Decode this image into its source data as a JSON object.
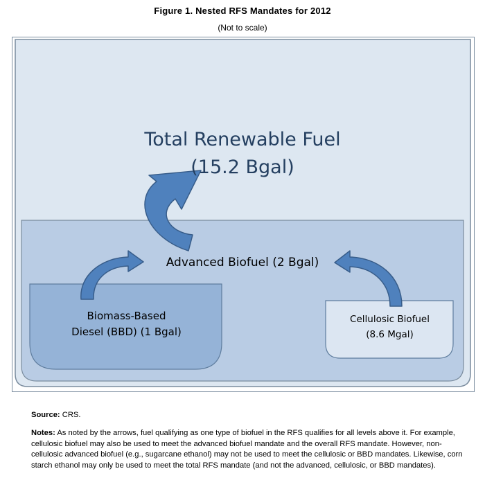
{
  "figure": {
    "title": "Figure 1. Nested RFS Mandates for 2012",
    "subtitle": "(Not to scale)"
  },
  "diagram": {
    "total_renewable_fuel": {
      "name": "Total Renewable Fuel",
      "amount": "(15.2 Bgal)"
    },
    "advanced_biofuel": {
      "label": "Advanced Biofuel (2 Bgal)"
    },
    "biomass_based_diesel": {
      "line1": "Biomass-Based",
      "line2": "Diesel (BBD) (1 Bgal)"
    },
    "cellulosic_biofuel": {
      "line1": "Cellulosic Biofuel",
      "line2": "(8.6 Mgal)"
    },
    "colors": {
      "outer_fill": "#dde7f1",
      "outer_stroke": "#7a8c9e",
      "advanced_fill": "#b9cce4",
      "bbd_fill": "#95b3d7",
      "cellulosic_fill": "#dce6f2",
      "arrow_fill": "#4f81bd",
      "arrow_stroke": "#385d8a",
      "title_text": "#243f60"
    }
  },
  "footer": {
    "source_label": "Source:",
    "source_text": "CRS.",
    "notes_label": "Notes:",
    "notes_text": "As noted by the arrows, fuel qualifying as one type of biofuel in the RFS qualifies for all levels above it. For example, cellulosic biofuel may also be used to meet the advanced biofuel mandate and the overall RFS mandate. However, non-cellulosic advanced biofuel (e.g., sugarcane ethanol) may not be used to meet the cellulosic or BBD mandates. Likewise, corn starch ethanol may only be used to meet the total RFS mandate (and not the advanced, cellulosic, or BBD mandates)."
  }
}
